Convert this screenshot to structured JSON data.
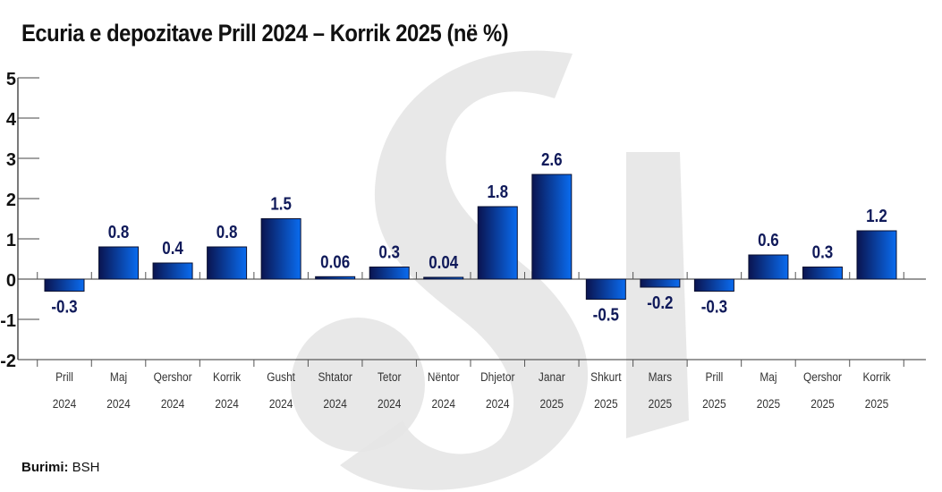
{
  "chart_data": {
    "type": "bar",
    "title": "Ecuria e depozitave Prill 2024 – Korrik 2025 (në %)",
    "xlabel": "",
    "ylabel": "",
    "ylim": [
      -2,
      5
    ],
    "yticks": [
      5,
      4,
      3,
      2,
      1,
      0,
      -1,
      -2
    ],
    "grid": false,
    "categories": [
      [
        "Prill",
        "2024"
      ],
      [
        "Maj",
        "2024"
      ],
      [
        "Qershor",
        "2024"
      ],
      [
        "Korrik",
        "2024"
      ],
      [
        "Gusht",
        "2024"
      ],
      [
        "Shtator",
        "2024"
      ],
      [
        "Tetor",
        "2024"
      ],
      [
        "Nëntor",
        "2024"
      ],
      [
        "Dhjetor",
        "2024"
      ],
      [
        "Janar",
        "2025"
      ],
      [
        "Shkurt",
        "2025"
      ],
      [
        "Mars",
        "2025"
      ],
      [
        "Prill",
        "2025"
      ],
      [
        "Maj",
        "2025"
      ],
      [
        "Qershor",
        "2025"
      ],
      [
        "Korrik",
        "2025"
      ]
    ],
    "values": [
      -0.3,
      0.8,
      0.4,
      0.8,
      1.5,
      0.06,
      0.3,
      0.04,
      1.8,
      2.6,
      -0.5,
      -0.2,
      -0.3,
      0.6,
      0.3,
      1.2
    ],
    "labels": [
      "-0.3",
      "0.8",
      "0.4",
      "0.8",
      "1.5",
      "0.06",
      "0.3",
      "0.04",
      "1.8",
      "2.6",
      "-0.5",
      "-0.2",
      "-0.3",
      "0.6",
      "0.3",
      "1.2"
    ],
    "colors": {
      "bar_dark": "#0a1450",
      "bar_light": "#0a6cf0",
      "label": "#101a5a"
    }
  },
  "source": {
    "label": "Burimi:",
    "value": "BSH"
  }
}
